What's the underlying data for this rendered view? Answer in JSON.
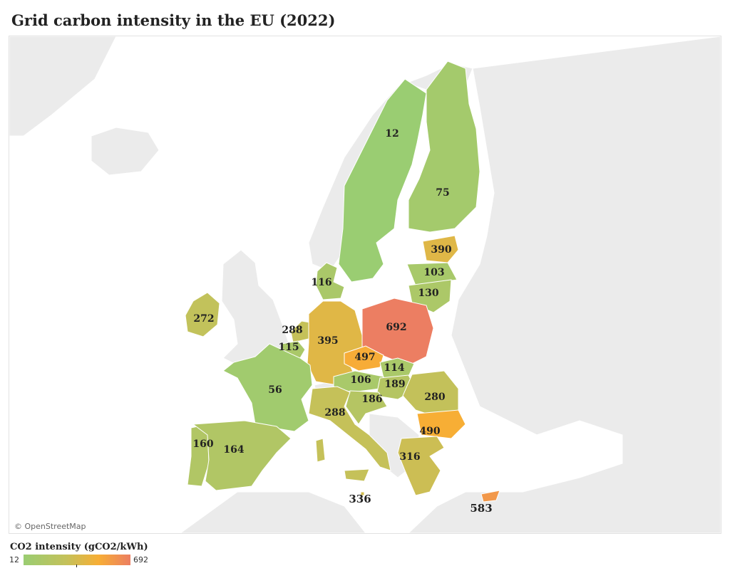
{
  "title": "Grid carbon intensity in the EU (2022)",
  "attribution": "© OpenStreetMap",
  "legend": {
    "title": "CO2 intensity (gCO2/kWh)",
    "min": "12",
    "max": "692",
    "scale_min": 12,
    "scale_max": 692,
    "colors": [
      "#9acd72",
      "#c4c15a",
      "#f7ae35",
      "#ec7e62"
    ]
  },
  "colors": {
    "land_background": "#ebebeb",
    "water": "#ffffff",
    "borders": "#ffffff"
  },
  "regions": [
    {
      "id": "sweden",
      "value": 12,
      "label": "12"
    },
    {
      "id": "finland",
      "value": 75,
      "label": "75"
    },
    {
      "id": "estonia",
      "value": 390,
      "label": "390"
    },
    {
      "id": "latvia",
      "value": 103,
      "label": "103"
    },
    {
      "id": "lithuania",
      "value": 130,
      "label": "130"
    },
    {
      "id": "denmark",
      "value": 116,
      "label": "116"
    },
    {
      "id": "ireland",
      "value": 272,
      "label": "272"
    },
    {
      "id": "netherlands",
      "value": 288,
      "label": "288"
    },
    {
      "id": "belgium",
      "value": 115,
      "label": "115"
    },
    {
      "id": "germany",
      "value": 395,
      "label": "395"
    },
    {
      "id": "poland",
      "value": 692,
      "label": "692"
    },
    {
      "id": "czechia",
      "value": 497,
      "label": "497"
    },
    {
      "id": "slovakia",
      "value": 114,
      "label": "114"
    },
    {
      "id": "austria",
      "value": 106,
      "label": "106"
    },
    {
      "id": "hungary",
      "value": 189,
      "label": "189"
    },
    {
      "id": "romania",
      "value": 280,
      "label": "280"
    },
    {
      "id": "slovenia-croatia",
      "value": 186,
      "label": "186"
    },
    {
      "id": "france",
      "value": 56,
      "label": "56"
    },
    {
      "id": "italy",
      "value": 288,
      "label": "288"
    },
    {
      "id": "bulgaria",
      "value": 490,
      "label": "490"
    },
    {
      "id": "greece",
      "value": 316,
      "label": "316"
    },
    {
      "id": "portugal",
      "value": 160,
      "label": "160"
    },
    {
      "id": "spain",
      "value": 164,
      "label": "164"
    },
    {
      "id": "malta",
      "value": 336,
      "label": "336"
    },
    {
      "id": "cyprus",
      "value": 583,
      "label": "583"
    }
  ]
}
